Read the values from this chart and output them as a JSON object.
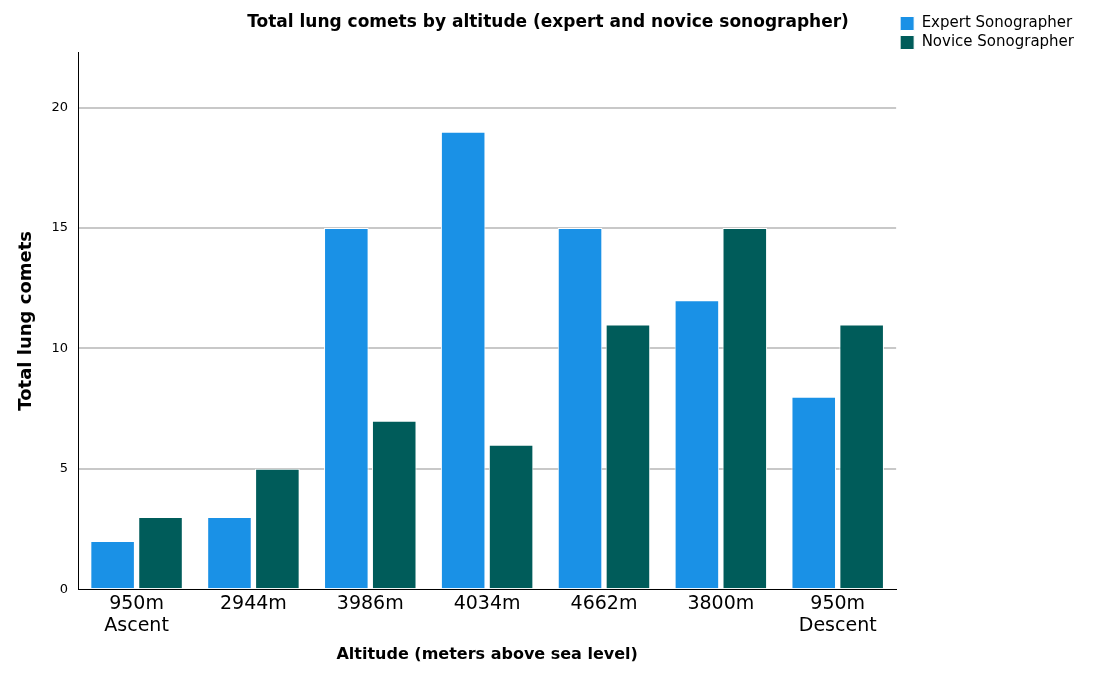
{
  "chart_data": {
    "type": "bar",
    "title": "Total lung comets by altitude (expert and novice sonographer)",
    "xlabel": "Altitude (meters above sea level)",
    "ylabel": "Total lung comets",
    "categories": [
      "950m\nAscent",
      "2944m",
      "3986m",
      "4034m",
      "4662m",
      "3800m",
      "950m\nDescent"
    ],
    "series": [
      {
        "name": "Expert Sonographer",
        "color": "#1a91e6",
        "values": [
          2,
          3,
          15,
          19,
          15,
          12,
          8
        ]
      },
      {
        "name": "Novice Sonographer",
        "color": "#005c5a",
        "values": [
          3,
          5,
          7,
          6,
          11,
          15,
          11
        ]
      }
    ],
    "ylim": [
      0,
      22.3
    ],
    "yticks": [
      0,
      5,
      10,
      15,
      20
    ],
    "grid": "y",
    "legend": "top right"
  }
}
